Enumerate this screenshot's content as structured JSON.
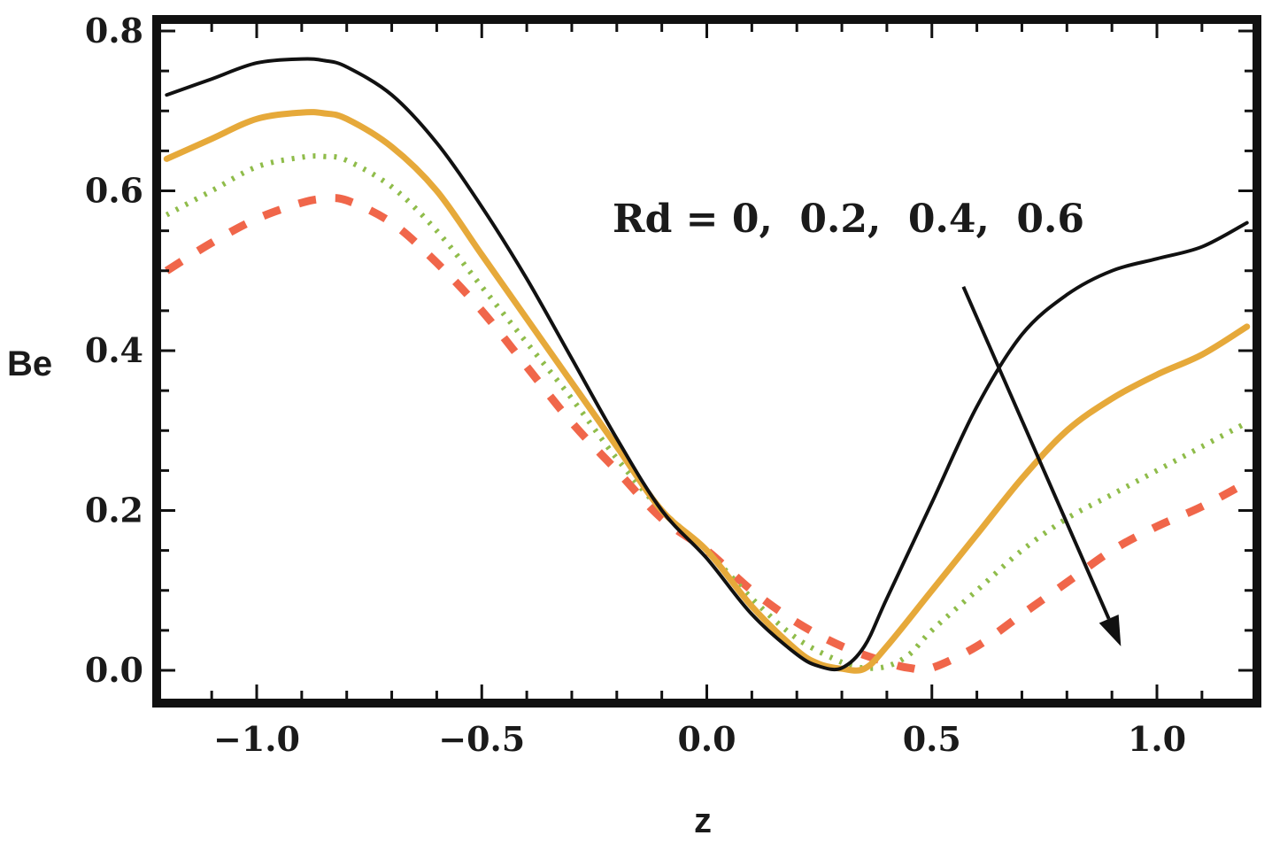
{
  "chart_data": {
    "type": "line",
    "xlabel": "z",
    "ylabel": "Be",
    "xlim": [
      -1.2,
      1.2
    ],
    "ylim": [
      -0.04,
      0.8
    ],
    "x_ticks": [
      -1.0,
      -0.5,
      0.0,
      0.5,
      1.0
    ],
    "x_tick_labels": [
      "−1.0",
      "−0.5",
      "0.0",
      "0.5",
      "1.0"
    ],
    "y_ticks": [
      0.0,
      0.2,
      0.4,
      0.6,
      0.8
    ],
    "y_tick_labels": [
      "0.0",
      "0.2",
      "0.4",
      "0.6",
      "0.8"
    ],
    "annotation": "Rd = 0,  0.2,  0.4,  0.6",
    "arrow": {
      "from": [
        0.57,
        0.48
      ],
      "to": [
        0.92,
        0.03
      ]
    },
    "series": [
      {
        "name": "Rd = 0",
        "color": "#111111",
        "style": "solid",
        "x": [
          -1.2,
          -1.1,
          -1.0,
          -0.9,
          -0.85,
          -0.8,
          -0.7,
          -0.6,
          -0.5,
          -0.4,
          -0.3,
          -0.2,
          -0.1,
          0.0,
          0.1,
          0.2,
          0.25,
          0.3,
          0.35,
          0.4,
          0.5,
          0.6,
          0.7,
          0.8,
          0.9,
          1.0,
          1.1,
          1.2
        ],
        "y": [
          0.72,
          0.74,
          0.76,
          0.765,
          0.763,
          0.755,
          0.72,
          0.66,
          0.58,
          0.49,
          0.39,
          0.29,
          0.2,
          0.14,
          0.07,
          0.02,
          0.005,
          0.003,
          0.03,
          0.09,
          0.21,
          0.33,
          0.42,
          0.47,
          0.5,
          0.515,
          0.53,
          0.56
        ]
      },
      {
        "name": "Rd = 0.2",
        "color": "#e6a93a",
        "style": "solid-thick",
        "x": [
          -1.2,
          -1.1,
          -1.0,
          -0.9,
          -0.85,
          -0.8,
          -0.7,
          -0.6,
          -0.5,
          -0.4,
          -0.3,
          -0.2,
          -0.1,
          0.0,
          0.1,
          0.2,
          0.25,
          0.3,
          0.35,
          0.4,
          0.5,
          0.6,
          0.7,
          0.8,
          0.9,
          1.0,
          1.1,
          1.2
        ],
        "y": [
          0.64,
          0.665,
          0.69,
          0.698,
          0.697,
          0.69,
          0.655,
          0.6,
          0.52,
          0.44,
          0.36,
          0.28,
          0.2,
          0.15,
          0.08,
          0.025,
          0.008,
          0.002,
          0.002,
          0.03,
          0.1,
          0.17,
          0.24,
          0.3,
          0.34,
          0.37,
          0.395,
          0.43
        ]
      },
      {
        "name": "Rd = 0.4",
        "color": "#8fbc4a",
        "style": "dotted",
        "x": [
          -1.2,
          -1.1,
          -1.0,
          -0.9,
          -0.85,
          -0.8,
          -0.7,
          -0.6,
          -0.5,
          -0.4,
          -0.3,
          -0.2,
          -0.1,
          0.0,
          0.1,
          0.2,
          0.3,
          0.35,
          0.4,
          0.45,
          0.5,
          0.6,
          0.7,
          0.8,
          0.9,
          1.0,
          1.1,
          1.2
        ],
        "y": [
          0.57,
          0.6,
          0.63,
          0.642,
          0.643,
          0.638,
          0.605,
          0.55,
          0.48,
          0.41,
          0.34,
          0.265,
          0.2,
          0.15,
          0.09,
          0.04,
          0.01,
          0.003,
          0.005,
          0.02,
          0.05,
          0.1,
          0.15,
          0.19,
          0.22,
          0.25,
          0.28,
          0.31
        ]
      },
      {
        "name": "Rd = 0.6",
        "color": "#f0664a",
        "style": "dashed",
        "x": [
          -1.2,
          -1.1,
          -1.0,
          -0.9,
          -0.85,
          -0.8,
          -0.7,
          -0.6,
          -0.5,
          -0.4,
          -0.3,
          -0.2,
          -0.1,
          0.0,
          0.1,
          0.2,
          0.3,
          0.4,
          0.45,
          0.5,
          0.6,
          0.7,
          0.8,
          0.9,
          1.0,
          1.1,
          1.2
        ],
        "y": [
          0.5,
          0.535,
          0.565,
          0.585,
          0.59,
          0.588,
          0.56,
          0.51,
          0.45,
          0.38,
          0.31,
          0.25,
          0.19,
          0.15,
          0.1,
          0.06,
          0.03,
          0.01,
          0.003,
          0.003,
          0.03,
          0.07,
          0.11,
          0.15,
          0.18,
          0.205,
          0.235
        ]
      }
    ]
  }
}
